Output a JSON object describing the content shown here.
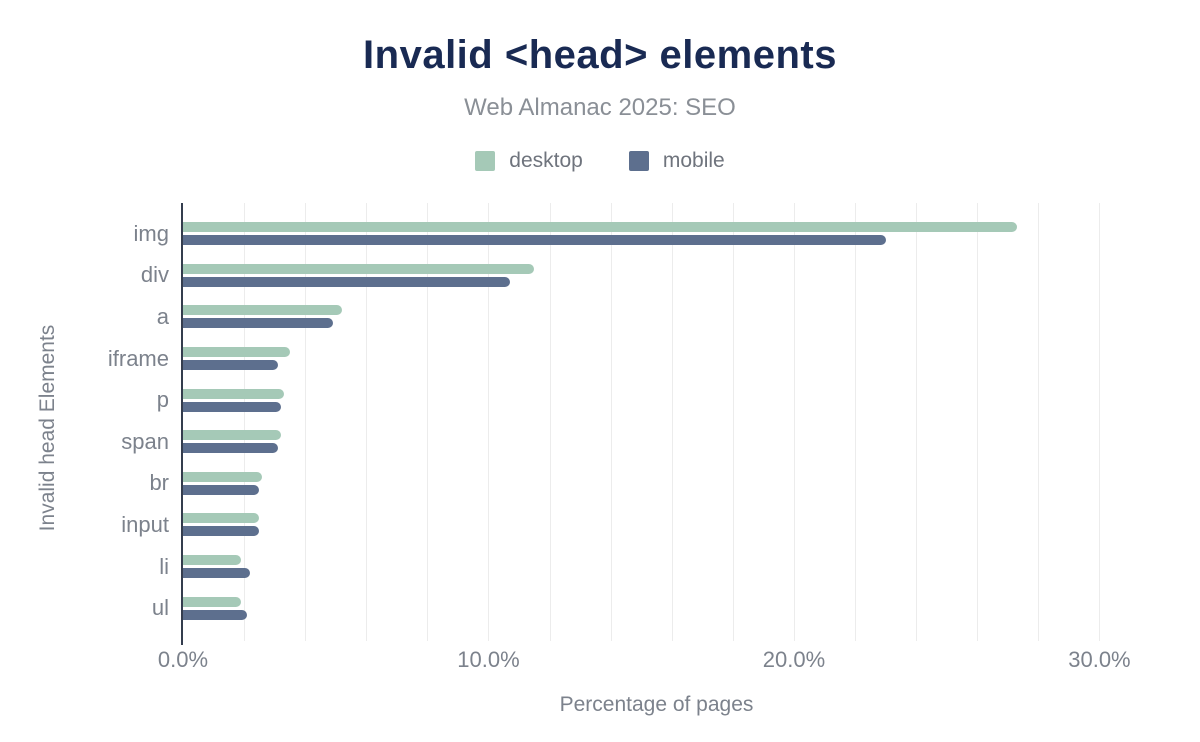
{
  "chart": {
    "title": "Invalid <head> elements",
    "subtitle": "Web Almanac 2025: SEO",
    "xlabel": "Percentage of pages",
    "ylabel": "Invalid head Elements"
  },
  "chart_data": {
    "type": "bar",
    "orientation": "horizontal",
    "title": "Invalid <head> elements",
    "subtitle": "Web Almanac 2025: SEO",
    "xlabel": "Percentage of pages",
    "ylabel": "Invalid head Elements",
    "unit": "%",
    "categories": [
      "img",
      "div",
      "a",
      "iframe",
      "p",
      "span",
      "br",
      "input",
      "li",
      "ul"
    ],
    "series": [
      {
        "name": "desktop",
        "color": "#a5c9b7",
        "values": [
          27.3,
          11.5,
          5.2,
          3.5,
          3.3,
          3.2,
          2.6,
          2.5,
          1.9,
          1.9
        ]
      },
      {
        "name": "mobile",
        "color": "#5d6f8e",
        "values": [
          23.0,
          10.7,
          4.9,
          3.1,
          3.2,
          3.1,
          2.5,
          2.5,
          2.2,
          2.1
        ]
      }
    ],
    "xlim": [
      0,
      31
    ],
    "xticks": {
      "values": [
        0,
        10,
        20,
        30
      ],
      "labels": [
        "0.0%",
        "10.0%",
        "20.0%",
        "30.0%"
      ]
    },
    "grid": {
      "step": 2,
      "max": 30,
      "on": true
    },
    "legend_position": "top"
  }
}
